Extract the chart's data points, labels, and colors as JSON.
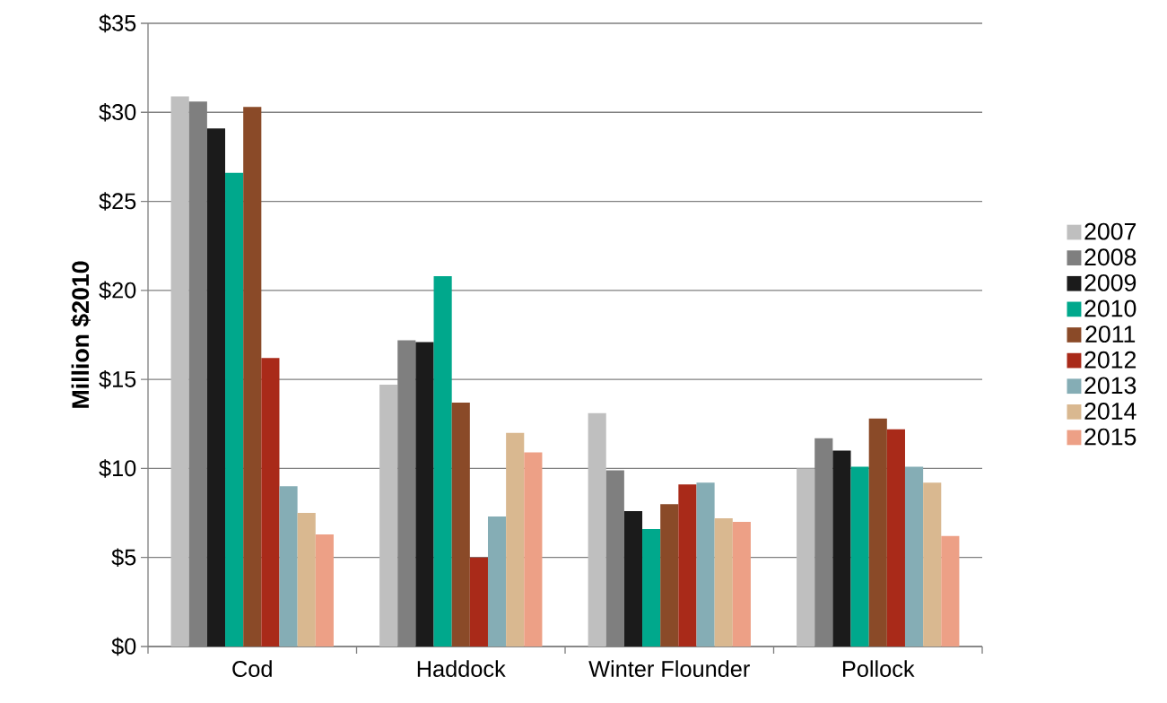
{
  "chart_data": {
    "type": "bar",
    "ylabel": "Million $2010",
    "categories": [
      "Cod",
      "Haddock",
      "Winter Flounder",
      "Pollock"
    ],
    "series": [
      {
        "name": "2007",
        "color": "#bfbfbf",
        "values": [
          30.9,
          14.7,
          13.1,
          10.0
        ]
      },
      {
        "name": "2008",
        "color": "#7f7f7f",
        "values": [
          30.6,
          17.2,
          9.9,
          11.7
        ]
      },
      {
        "name": "2009",
        "color": "#1b1b1b",
        "values": [
          29.1,
          17.1,
          7.6,
          11.0
        ]
      },
      {
        "name": "2010",
        "color": "#00a88c",
        "values": [
          26.6,
          20.8,
          6.6,
          10.1
        ]
      },
      {
        "name": "2011",
        "color": "#8a4a28",
        "values": [
          30.3,
          13.7,
          8.0,
          12.8
        ]
      },
      {
        "name": "2012",
        "color": "#a92a19",
        "values": [
          16.2,
          5.0,
          9.1,
          12.2
        ]
      },
      {
        "name": "2013",
        "color": "#85adb5",
        "values": [
          9.0,
          7.3,
          9.2,
          10.1
        ]
      },
      {
        "name": "2014",
        "color": "#d9b890",
        "values": [
          7.5,
          12.0,
          7.2,
          9.2
        ]
      },
      {
        "name": "2015",
        "color": "#eda086",
        "values": [
          6.3,
          10.9,
          7.0,
          6.2
        ]
      }
    ],
    "ylim": [
      0,
      35
    ],
    "yticks": [
      {
        "value": 0,
        "label": "$0"
      },
      {
        "value": 5,
        "label": "$5"
      },
      {
        "value": 10,
        "label": "$10"
      },
      {
        "value": 15,
        "label": "$15"
      },
      {
        "value": 20,
        "label": "$20"
      },
      {
        "value": 25,
        "label": "$25"
      },
      {
        "value": 30,
        "label": "$30"
      },
      {
        "value": 35,
        "label": "$35"
      }
    ],
    "grid": "y",
    "legend": "right"
  }
}
